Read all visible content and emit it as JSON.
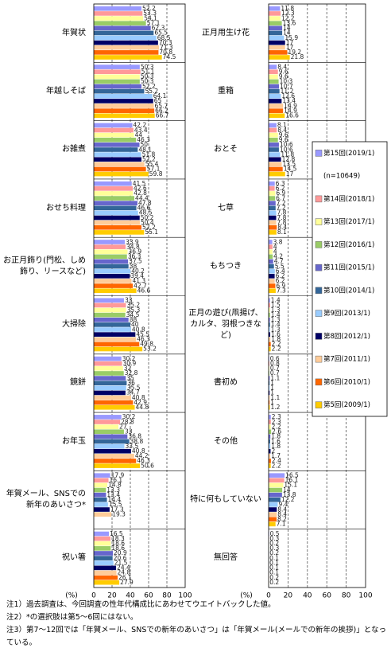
{
  "chart_data": [
    {
      "type": "bar",
      "orientation": "horizontal",
      "x_unit": "(%)",
      "categories": [
        "年賀状",
        "年越しそば",
        "お雑煮",
        "おせち料理",
        "お正月飾り(門松、しめ飾り、リースなど)",
        "大掃除",
        "鏡餅",
        "お年玉",
        "年賀メール、SNSでの新年のあいさつ*",
        "祝い箸"
      ],
      "xlim": [
        0,
        100
      ],
      "xticks": [
        0,
        20,
        40,
        60,
        80,
        100
      ],
      "grid": true,
      "series": [
        {
          "color": "#9999ff",
          "values": [
            52.2,
            50.3,
            42.2,
            41.5,
            33.9,
            33.0,
            30.2,
            30.2,
            17.9,
            16.5
          ]
        },
        {
          "color": "#ff9999",
          "values": [
            53.3,
            51.1,
            43.4,
            42.6,
            34.8,
            35.2,
            30.9,
            28.8,
            16.1,
            18.3
          ]
        },
        {
          "color": "#ffff99",
          "values": [
            54.1,
            50.3,
            44.0,
            42.8,
            36.9,
            35.3,
            32.0,
            27.0,
            14.8,
            18.6
          ]
        },
        {
          "color": "#99cc66",
          "values": [
            57.1,
            50.3,
            46.3,
            44.4,
            36.3,
            34.5,
            32.8,
            33.0,
            13.3,
            18.6
          ]
        },
        {
          "color": "#6666cc",
          "values": [
            62.3,
            52.2,
            50.0,
            47.8,
            37.5,
            38.0,
            35.0,
            36.8,
            13.4,
            20.9
          ]
        },
        {
          "color": "#336699",
          "values": [
            65.5,
            55.2,
            48.1,
            46.6,
            38.0,
            40.0,
            36.0,
            38.8,
            14.4,
            20.6
          ]
        },
        {
          "color": "#99ccff",
          "values": [
            68.5,
            64.1,
            51.8,
            48.5,
            40.2,
            40.8,
            35.5,
            33.5,
            15.5,
            21.5
          ]
        },
        {
          "color": "#000066",
          "values": [
            70.3,
            65.0,
            52.2,
            50.2,
            39.4,
            45.5,
            34.7,
            40.8,
            17.3,
            24.4
          ]
        },
        {
          "color": "#ffcc99",
          "values": [
            71.3,
            65.7,
            55.4,
            50.4,
            41.3,
            46.3,
            40.8,
            44.2,
            19.3,
            24.8
          ]
        },
        {
          "color": "#ff6600",
          "values": [
            70.8,
            66.2,
            57.1,
            52.2,
            42.7,
            49.8,
            42.9,
            46.3,
            null,
            26.1
          ]
        },
        {
          "color": "#ffcc00",
          "values": [
            74.5,
            66.7,
            59.8,
            55.1,
            46.6,
            53.2,
            44.8,
            50.6,
            null,
            27.9
          ]
        }
      ]
    },
    {
      "type": "bar",
      "orientation": "horizontal",
      "x_unit": "(%)",
      "categories": [
        "正月用生け花",
        "重箱",
        "おとそ",
        "七草",
        "もちつき",
        "正月の遊び(凧揚げ、カルタ、羽根つきなど)",
        "書初め",
        "その他",
        "特に何もしていない",
        "無回答"
      ],
      "xlim": [
        0,
        100
      ],
      "xticks": [
        0,
        20,
        40,
        60,
        80,
        100
      ],
      "grid": true,
      "legend_position": "right",
      "legend_note": "(n=10649)",
      "series": [
        {
          "name": "第15回(2019/1)",
          "color": "#9999ff",
          "values": [
            11.8,
            8.4,
            8.1,
            6.3,
            3.8,
            1.4,
            0.6,
            2.3,
            16.5,
            0.5
          ]
        },
        {
          "name": "第14回(2018/1)",
          "color": "#ff9999",
          "values": [
            12.3,
            9.6,
            8.4,
            6.2,
            4.0,
            1.5,
            0.8,
            2.3,
            16.1,
            0.3
          ]
        },
        {
          "name": "第13回(2017/1)",
          "color": "#ffff99",
          "values": [
            12.2,
            9.6,
            9.6,
            6.9,
            4.0,
            1.3,
            0.7,
            2.2,
            15.1,
            0.2
          ]
        },
        {
          "name": "第12回(2016/1)",
          "color": "#99cc66",
          "values": [
            13.6,
            10.3,
            9.6,
            6.7,
            4.2,
            1.4,
            0.7,
            2.6,
            14.0,
            0.3
          ]
        },
        {
          "name": "第11回(2015/1)",
          "color": "#6666cc",
          "values": [
            14.0,
            10.7,
            10.6,
            7.2,
            4.7,
            1.3,
            1.1,
            1.8,
            13.8,
            0.2
          ]
        },
        {
          "name": "第10回(2014/1)",
          "color": "#336699",
          "values": [
            14.0,
            11.2,
            10.6,
            7.2,
            5.5,
            1.4,
            1.0,
            1.6,
            12.2,
            0.1
          ]
        },
        {
          "name": "第9回(2013/1)",
          "color": "#99ccff",
          "values": [
            15.9,
            12.6,
            11.8,
            7.8,
            6.4,
            1.3,
            1.0,
            1.8,
            9.4,
            0.1
          ]
        },
        {
          "name": "第8回(2012/1)",
          "color": "#000066",
          "values": [
            17.0,
            13.4,
            12.8,
            7.8,
            6.2,
            1.6,
            1.0,
            2.0,
            8.4,
            0.1
          ]
        },
        {
          "name": "第7回(2011/1)",
          "color": "#ffcc99",
          "values": [
            17.0,
            14.9,
            13.5,
            7.8,
            6.2,
            1.8,
            1.1,
            1.7,
            8.4,
            0.1
          ]
        },
        {
          "name": "第6回(2010/1)",
          "color": "#ff6600",
          "values": [
            19.2,
            14.9,
            14.5,
            8.4,
            6.9,
            2.2,
            1.0,
            2.4,
            8.2,
            0.2
          ]
        },
        {
          "name": "第5回(2009/1)",
          "color": "#ffcc00",
          "values": [
            21.8,
            16.6,
            17.0,
            8.1,
            7.3,
            2.2,
            1.2,
            2.2,
            7.1,
            0.2
          ]
        }
      ]
    }
  ],
  "notes": [
    "注1）過去調査は、今回調査の性年代構成比にあわせてウエイトバックした値。",
    "注2）*の選択肢は第5〜6回にはない。",
    "注3）第7〜12回では「年賀メール、SNSでの新年のあいさつ」は「年賀メール(メールでの新年の挨拶)」となっている。"
  ]
}
